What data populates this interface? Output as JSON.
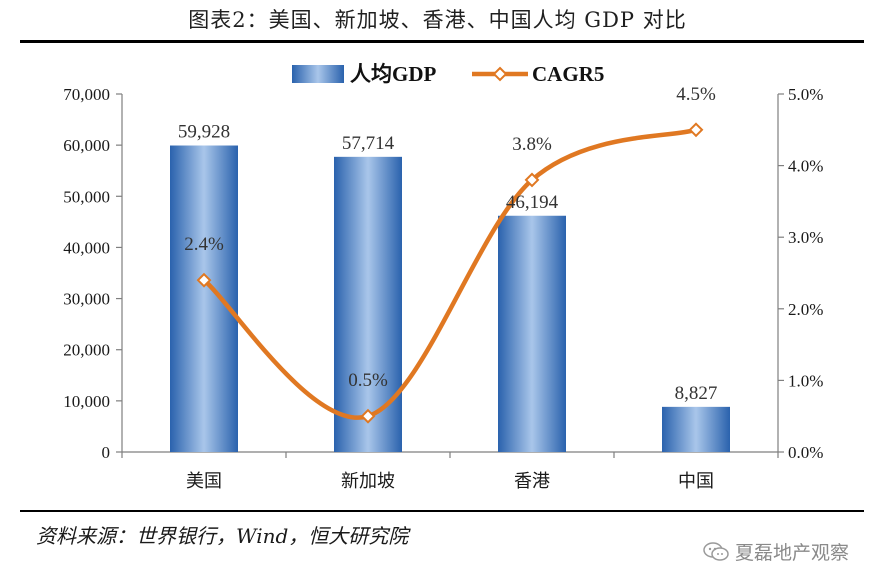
{
  "header": {
    "title": "图表2：美国、新加坡、香港、中国人均 GDP 对比"
  },
  "footer": {
    "source": "资料来源：世界银行，Wind，恒大研究院",
    "watermark": "夏磊地产观察",
    "watermark_icon": "wechat-icon"
  },
  "colors": {
    "bar": "#3b78c4",
    "line": "#e07822",
    "marker_fill": "#ffffff"
  },
  "chart_data": {
    "type": "bar",
    "categories": [
      "美国",
      "新加坡",
      "香港",
      "中国"
    ],
    "series": [
      {
        "name": "人均GDP",
        "type": "bar",
        "axis": "left",
        "values": [
          59928,
          57714,
          46194,
          8827
        ],
        "labels": [
          "59,928",
          "57,714",
          "46,194",
          "8,827"
        ]
      },
      {
        "name": "CAGR5",
        "type": "line",
        "axis": "right",
        "values": [
          2.4,
          0.5,
          3.8,
          4.5
        ],
        "labels": [
          "2.4%",
          "0.5%",
          "3.8%",
          "4.5%"
        ]
      }
    ],
    "y_left": {
      "ylim": [
        0,
        70000
      ],
      "ticks": [
        "0",
        "10,000",
        "20,000",
        "30,000",
        "40,000",
        "50,000",
        "60,000",
        "70,000"
      ]
    },
    "y_right": {
      "ylim": [
        0,
        5
      ],
      "ticks": [
        "0.0%",
        "1.0%",
        "2.0%",
        "3.0%",
        "4.0%",
        "5.0%"
      ]
    },
    "legend": {
      "position": "top-center",
      "entries": [
        "人均GDP",
        "CAGR5"
      ]
    },
    "grid": false
  }
}
